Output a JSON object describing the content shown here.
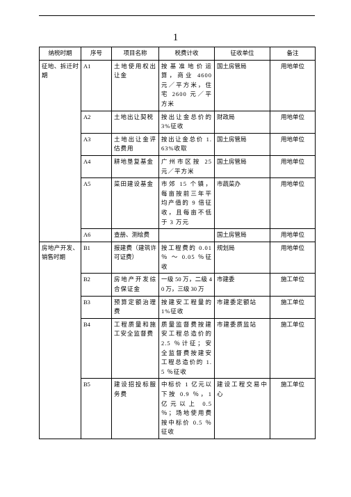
{
  "page_number": "1",
  "headers": [
    "纳税时期",
    "序号",
    "项目名称",
    "税费计收",
    "征收单位",
    "备注"
  ],
  "period1": "征地、拆迁时期",
  "period2": "房地产开发、销售时期",
  "rows": {
    "a1": {
      "seq": "A1",
      "name": "土地使用权出让金",
      "calc": "按基准地价运算，商业 4600 元／平方米，住宅 2600 元／平方米",
      "unit": "国土房管局",
      "note": "用地单位"
    },
    "a2": {
      "seq": "A2",
      "name": "土地出让契税",
      "calc": "按出让金总价的 3%征收",
      "unit": "财政局",
      "note": "用地单位"
    },
    "a3": {
      "seq": "A3",
      "name": "土地出让金评估费用",
      "calc": "按出让金总价 1.63%收取",
      "unit": "国土房管局",
      "note": "用地单位"
    },
    "a4": {
      "seq": "A4",
      "name": "耕地垦复基金",
      "calc": "广州市区按 25 元／平方米",
      "unit": "国土房管局",
      "note": "用地单位"
    },
    "a5": {
      "seq": "A5",
      "name": "菜田建设基金",
      "calc": "市郊 15 个镇，每亩按前三年平均产值的 9 倍征收，且每亩不低于 3 万元",
      "unit": "市蔬菜办",
      "note": "用地单位"
    },
    "a6": {
      "seq": "A6",
      "name": "查册、测绘费",
      "calc": "",
      "unit": "国土房管局",
      "note": "用地单位"
    },
    "b1": {
      "seq": "B1",
      "name": "报建费（建筑许可证费）",
      "calc": "按工程费的 0.01 ％ ～ 0.05 ％征收",
      "unit": "规划局",
      "note": "用地单位"
    },
    "b2": {
      "seq": "B2",
      "name": "房地产开发综合保证金",
      "calc": "一级 50 万，二级 40 万，三级 30 万",
      "unit": "市建委",
      "note": "施工单位"
    },
    "b3": {
      "seq": "B3",
      "name": "预算定额治理费",
      "calc": "按建安工程量的 1%征收",
      "unit": "市建委定额站",
      "note": "施工单位"
    },
    "b4": {
      "seq": "B4",
      "name": "工程质量和施工安全监督费",
      "calc": "质量监督费按建安工程总造价的 2.5 ％计征；安全监督费按建安工程总造价的 1.5 ％征收",
      "unit": "市建委质监站",
      "note": "施工单位"
    },
    "b5": {
      "seq": "B5",
      "name": "建设招投标服务费",
      "calc": "中标价 1 亿元以下按 0.9 ％，1 亿元以上 0.5 ％；场地使用费按中标价 0.5 ％征收",
      "unit": "建设工程交易中心",
      "note": "施工单位"
    }
  }
}
